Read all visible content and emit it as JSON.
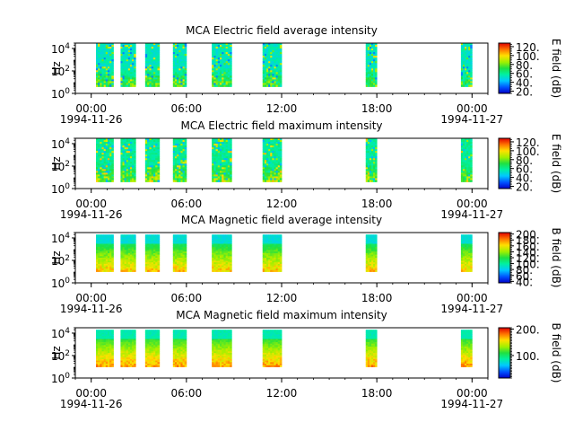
{
  "chart_data": [
    {
      "type": "heatmap",
      "title": "MCA  Electric field average intensity",
      "ylabel": "Hz",
      "y_scale": "log",
      "ylim": [
        1,
        30000
      ],
      "y_ticks": [
        {
          "v": 1,
          "b": "10",
          "e": "0"
        },
        {
          "v": 100,
          "b": "10",
          "e": "2"
        },
        {
          "v": 10000,
          "b": "10",
          "e": "4"
        }
      ],
      "x_ticks": [
        "00:00",
        "06:00",
        "12:00",
        "18:00",
        "00:00"
      ],
      "x_date_labels": [
        "1994-11-26",
        "1994-11-27"
      ],
      "xlim_hours": [
        -1,
        25
      ],
      "colorbar": {
        "label": "E field (dB)",
        "range": [
          15,
          128
        ],
        "ticks": [
          "20.",
          "40.",
          "60.",
          "80.",
          "100.",
          "120."
        ],
        "tick_values": [
          20,
          40,
          60,
          80,
          100,
          120
        ]
      },
      "data_intervals_hours": [
        [
          0.3,
          1.4
        ],
        [
          1.85,
          2.8
        ],
        [
          3.4,
          4.3
        ],
        [
          5.15,
          6.0
        ],
        [
          7.6,
          8.85
        ],
        [
          10.8,
          12.0
        ],
        [
          17.3,
          18.0
        ],
        [
          23.3,
          24.0
        ]
      ],
      "colormap": "rainbow"
    },
    {
      "type": "heatmap",
      "title": "MCA  Electric field maximum intensity",
      "ylabel": "Hz",
      "y_scale": "log",
      "ylim": [
        1,
        30000
      ],
      "y_ticks": [
        {
          "v": 1,
          "b": "10",
          "e": "0"
        },
        {
          "v": 100,
          "b": "10",
          "e": "2"
        },
        {
          "v": 10000,
          "b": "10",
          "e": "4"
        }
      ],
      "x_ticks": [
        "00:00",
        "06:00",
        "12:00",
        "18:00",
        "00:00"
      ],
      "x_date_labels": [
        "1994-11-26",
        "1994-11-27"
      ],
      "xlim_hours": [
        -1,
        25
      ],
      "colorbar": {
        "label": "E field (dB)",
        "range": [
          15,
          128
        ],
        "ticks": [
          "20.",
          "40.",
          "60.",
          "80.",
          "100.",
          "120."
        ],
        "tick_values": [
          20,
          40,
          60,
          80,
          100,
          120
        ]
      },
      "data_intervals_hours": [
        [
          0.3,
          1.4
        ],
        [
          1.85,
          2.8
        ],
        [
          3.4,
          4.3
        ],
        [
          5.15,
          6.0
        ],
        [
          7.6,
          8.85
        ],
        [
          10.8,
          12.0
        ],
        [
          17.3,
          18.0
        ],
        [
          23.3,
          24.0
        ]
      ],
      "colormap": "rainbow"
    },
    {
      "type": "heatmap",
      "title": "MCA  Magnetic field average intensity",
      "ylabel": "Hz",
      "y_scale": "log",
      "ylim": [
        1,
        30000
      ],
      "y_ticks": [
        {
          "v": 1,
          "b": "10",
          "e": "0"
        },
        {
          "v": 100,
          "b": "10",
          "e": "2"
        },
        {
          "v": 10000,
          "b": "10",
          "e": "4"
        }
      ],
      "x_ticks": [
        "00:00",
        "06:00",
        "12:00",
        "18:00",
        "00:00"
      ],
      "x_date_labels": [
        "1994-11-26",
        "1994-11-27"
      ],
      "xlim_hours": [
        -1,
        25
      ],
      "colorbar": {
        "label": "B field (dB)",
        "range": [
          35,
          205
        ],
        "ticks": [
          "40.",
          "60.",
          "80.",
          "100.",
          "120.",
          "140.",
          "160.",
          "180.",
          "200."
        ],
        "tick_values": [
          40,
          60,
          80,
          100,
          120,
          140,
          160,
          180,
          200
        ]
      },
      "data_intervals_hours": [
        [
          0.3,
          1.4
        ],
        [
          1.85,
          2.8
        ],
        [
          3.4,
          4.3
        ],
        [
          5.15,
          6.0
        ],
        [
          7.6,
          8.85
        ],
        [
          10.8,
          12.0
        ],
        [
          17.3,
          18.0
        ],
        [
          23.3,
          24.0
        ]
      ],
      "colormap": "rainbow"
    },
    {
      "type": "heatmap",
      "title": "MCA  Magnetic field maximum intensity",
      "ylabel": "Hz",
      "y_scale": "log",
      "ylim": [
        1,
        30000
      ],
      "y_ticks": [
        {
          "v": 1,
          "b": "10",
          "e": "0"
        },
        {
          "v": 100,
          "b": "10",
          "e": "2"
        },
        {
          "v": 10000,
          "b": "10",
          "e": "4"
        }
      ],
      "x_ticks": [
        "00:00",
        "06:00",
        "12:00",
        "18:00",
        "00:00"
      ],
      "x_date_labels": [
        "1994-11-26",
        "1994-11-27"
      ],
      "xlim_hours": [
        -1,
        25
      ],
      "colorbar": {
        "label": "B field (dB)",
        "range": [
          15,
          205
        ],
        "ticks": [
          "100.",
          "200."
        ],
        "tick_values": [
          100,
          200
        ]
      },
      "data_intervals_hours": [
        [
          0.3,
          1.4
        ],
        [
          1.85,
          2.8
        ],
        [
          3.4,
          4.3
        ],
        [
          5.15,
          6.0
        ],
        [
          7.6,
          8.85
        ],
        [
          10.8,
          12.0
        ],
        [
          17.3,
          18.0
        ],
        [
          23.3,
          24.0
        ]
      ],
      "colormap": "rainbow"
    }
  ]
}
